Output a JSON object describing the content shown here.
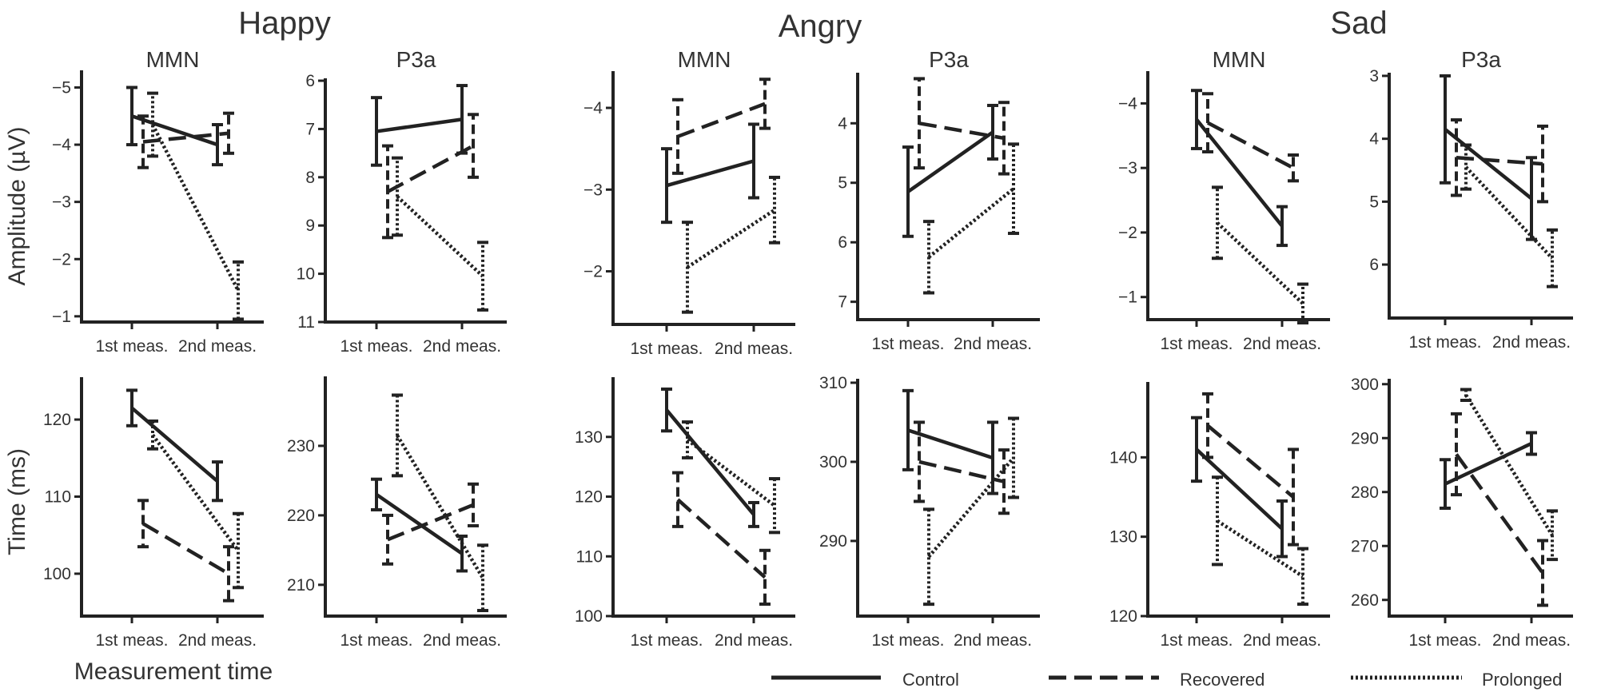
{
  "figure": {
    "groups": [
      "Happy",
      "Angry",
      "Sad"
    ],
    "y_labels": {
      "amplitude": "Amplitude (µV)",
      "time": "Time (ms)"
    },
    "x_label": "Measurement time",
    "ink_color": "#222222",
    "text_color": "#333333"
  },
  "legend": [
    {
      "label": "Control",
      "style": "solid"
    },
    {
      "label": "Recovered",
      "style": "dashed"
    },
    {
      "label": "Prolonged",
      "style": "dotted"
    }
  ],
  "chart_data": [
    {
      "type": "line",
      "group": "Happy",
      "title": "MMN",
      "ylabel": "Amplitude (µV)",
      "ylim": [
        -0.9,
        -5.3
      ],
      "yticks": [
        -5,
        -4,
        -3,
        -2,
        -1
      ],
      "categories": [
        "1st meas.",
        "2nd meas."
      ],
      "series": [
        {
          "name": "Control",
          "values": [
            -4.5,
            -4.0
          ],
          "err": [
            0.5,
            0.35
          ]
        },
        {
          "name": "Recovered",
          "values": [
            -4.05,
            -4.2
          ],
          "err": [
            0.45,
            0.35
          ]
        },
        {
          "name": "Prolonged",
          "values": [
            -4.35,
            -1.45
          ],
          "err": [
            0.55,
            0.5
          ]
        }
      ]
    },
    {
      "type": "line",
      "group": "Happy",
      "title": "P3a",
      "ylabel": "",
      "ylim": [
        11,
        5.95
      ],
      "yticks": [
        6,
        7,
        8,
        9,
        10,
        11
      ],
      "categories": [
        "1st meas.",
        "2nd meas."
      ],
      "series": [
        {
          "name": "Control",
          "values": [
            7.05,
            6.8
          ],
          "err": [
            0.7,
            0.7
          ]
        },
        {
          "name": "Recovered",
          "values": [
            8.3,
            7.35
          ],
          "err": [
            0.95,
            0.65
          ]
        },
        {
          "name": "Prolonged",
          "values": [
            8.4,
            10.05
          ],
          "err": [
            0.8,
            0.7
          ]
        }
      ]
    },
    {
      "type": "line",
      "group": "Angry",
      "title": "MMN",
      "ylabel": "",
      "ylim": [
        -1.35,
        -4.45
      ],
      "yticks": [
        -4,
        -3,
        -2
      ],
      "categories": [
        "1st meas.",
        "2nd meas."
      ],
      "series": [
        {
          "name": "Control",
          "values": [
            -3.05,
            -3.35
          ],
          "err": [
            0.45,
            0.45
          ]
        },
        {
          "name": "Recovered",
          "values": [
            -3.65,
            -4.05
          ],
          "err": [
            0.45,
            0.3
          ]
        },
        {
          "name": "Prolonged",
          "values": [
            -2.05,
            -2.75
          ],
          "err": [
            0.55,
            0.4
          ]
        }
      ]
    },
    {
      "type": "line",
      "group": "Angry",
      "title": "P3a",
      "ylabel": "",
      "ylim": [
        7.3,
        3.15
      ],
      "yticks": [
        4,
        5,
        6,
        7
      ],
      "categories": [
        "1st meas.",
        "2nd meas."
      ],
      "series": [
        {
          "name": "Control",
          "values": [
            5.15,
            4.15
          ],
          "err": [
            0.75,
            0.45
          ]
        },
        {
          "name": "Recovered",
          "values": [
            4.0,
            4.25
          ],
          "err": [
            0.75,
            0.6
          ]
        },
        {
          "name": "Prolonged",
          "values": [
            6.25,
            5.1
          ],
          "err": [
            0.6,
            0.75
          ]
        }
      ]
    },
    {
      "type": "line",
      "group": "Sad",
      "title": "MMN",
      "ylabel": "",
      "ylim": [
        -0.65,
        -4.5
      ],
      "yticks": [
        -4,
        -3,
        -2,
        -1
      ],
      "categories": [
        "1st meas.",
        "2nd meas."
      ],
      "series": [
        {
          "name": "Control",
          "values": [
            -3.75,
            -2.1
          ],
          "err": [
            0.45,
            0.3
          ]
        },
        {
          "name": "Recovered",
          "values": [
            -3.7,
            -3.0
          ],
          "err": [
            0.45,
            0.2
          ]
        },
        {
          "name": "Prolonged",
          "values": [
            -2.15,
            -0.9
          ],
          "err": [
            0.55,
            0.3
          ]
        }
      ]
    },
    {
      "type": "line",
      "group": "Sad",
      "title": "P3a",
      "ylabel": "",
      "ylim": [
        6.85,
        2.95
      ],
      "yticks": [
        3,
        4,
        5,
        6
      ],
      "categories": [
        "1st meas.",
        "2nd meas."
      ],
      "series": [
        {
          "name": "Control",
          "values": [
            3.85,
            4.95
          ],
          "err": [
            0.85,
            0.65
          ]
        },
        {
          "name": "Recovered",
          "values": [
            4.3,
            4.4
          ],
          "err": [
            0.6,
            0.6
          ]
        },
        {
          "name": "Prolonged",
          "values": [
            4.45,
            5.9
          ],
          "err": [
            0.35,
            0.45
          ]
        }
      ]
    },
    {
      "type": "line",
      "group": "Happy",
      "title": "",
      "ylabel": "Time (ms)",
      "ylim": [
        94.5,
        125.5
      ],
      "yticks": [
        100,
        110,
        120
      ],
      "categories": [
        "1st meas.",
        "2nd meas."
      ],
      "series": [
        {
          "name": "Control",
          "values": [
            121.5,
            112.0
          ],
          "err": [
            2.3,
            2.5
          ]
        },
        {
          "name": "Recovered",
          "values": [
            106.5,
            100.0
          ],
          "err": [
            3.0,
            3.5
          ]
        },
        {
          "name": "Prolonged",
          "values": [
            118.0,
            103.0
          ],
          "err": [
            1.8,
            4.8
          ]
        }
      ]
    },
    {
      "type": "line",
      "group": "Happy",
      "title": "",
      "ylabel": "",
      "ylim": [
        205.5,
        240.0
      ],
      "yticks": [
        210,
        220,
        230
      ],
      "categories": [
        "1st meas.",
        "2nd meas."
      ],
      "series": [
        {
          "name": "Control",
          "values": [
            223.0,
            214.5
          ],
          "err": [
            2.2,
            2.5
          ]
        },
        {
          "name": "Recovered",
          "values": [
            216.5,
            221.5
          ],
          "err": [
            3.5,
            3.0
          ]
        },
        {
          "name": "Prolonged",
          "values": [
            231.5,
            211.0
          ],
          "err": [
            5.8,
            4.7
          ]
        }
      ]
    },
    {
      "type": "line",
      "group": "Angry",
      "title": "",
      "ylabel": "",
      "ylim": [
        100.0,
        140.0
      ],
      "yticks": [
        100,
        110,
        120,
        130
      ],
      "categories": [
        "1st meas.",
        "2nd meas."
      ],
      "series": [
        {
          "name": "Control",
          "values": [
            134.5,
            117.0
          ],
          "err": [
            3.5,
            2.0
          ]
        },
        {
          "name": "Recovered",
          "values": [
            119.5,
            106.5
          ],
          "err": [
            4.5,
            4.5
          ]
        },
        {
          "name": "Prolonged",
          "values": [
            129.5,
            118.5
          ],
          "err": [
            3.0,
            4.5
          ]
        }
      ]
    },
    {
      "type": "line",
      "group": "Angry",
      "title": "",
      "ylabel": "",
      "ylim": [
        280.5,
        310.5
      ],
      "yticks": [
        290,
        300,
        310
      ],
      "categories": [
        "1st meas.",
        "2nd meas."
      ],
      "series": [
        {
          "name": "Control",
          "values": [
            304.0,
            300.5
          ],
          "err": [
            5.0,
            4.5
          ]
        },
        {
          "name": "Recovered",
          "values": [
            300.0,
            297.5
          ],
          "err": [
            5.0,
            4.0
          ]
        },
        {
          "name": "Prolonged",
          "values": [
            288.0,
            300.5
          ],
          "err": [
            6.0,
            5.0
          ]
        }
      ]
    },
    {
      "type": "line",
      "group": "Sad",
      "title": "",
      "ylabel": "",
      "ylim": [
        120.0,
        149.5
      ],
      "yticks": [
        120,
        130,
        140
      ],
      "categories": [
        "1st meas.",
        "2nd meas."
      ],
      "series": [
        {
          "name": "Control",
          "values": [
            141.0,
            131.0
          ],
          "err": [
            4.0,
            3.5
          ]
        },
        {
          "name": "Recovered",
          "values": [
            144.0,
            135.0
          ],
          "err": [
            4.0,
            6.0
          ]
        },
        {
          "name": "Prolonged",
          "values": [
            132.0,
            125.0
          ],
          "err": [
            5.5,
            3.5
          ]
        }
      ]
    },
    {
      "type": "line",
      "group": "Sad",
      "title": "",
      "ylabel": "",
      "ylim": [
        257.0,
        301.0
      ],
      "yticks": [
        260,
        270,
        280,
        290,
        300
      ],
      "categories": [
        "1st meas.",
        "2nd meas."
      ],
      "series": [
        {
          "name": "Control",
          "values": [
            281.5,
            289.0
          ],
          "err": [
            4.5,
            2.0
          ]
        },
        {
          "name": "Recovered",
          "values": [
            287.0,
            265.0
          ],
          "err": [
            7.5,
            6.0
          ]
        },
        {
          "name": "Prolonged",
          "values": [
            298.0,
            272.0
          ],
          "err": [
            1.0,
            4.5
          ]
        }
      ]
    }
  ]
}
